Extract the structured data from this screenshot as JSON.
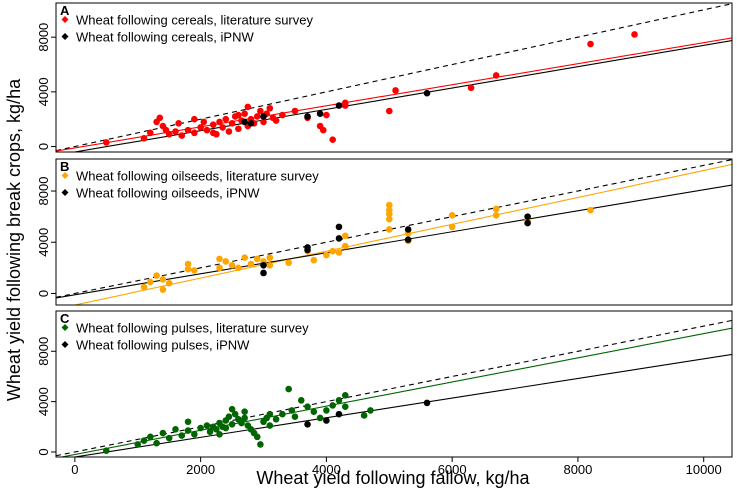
{
  "chart_data": {
    "type": "scatter",
    "xlabel": "Wheat yield following fallow, kg/ha",
    "ylabel": "Wheat yield following break crops, kg/ha",
    "xlim": [
      -300,
      10450
    ],
    "x_ticks": [
      0,
      2000,
      4000,
      6000,
      8000,
      10000
    ],
    "colors": {
      "literature_cereals": "#ff0000",
      "literature_oilseeds": "#ffa500",
      "literature_pulses": "#006400",
      "ipnw": "#000000",
      "reference": "#000000"
    },
    "panels": [
      {
        "letter": "A",
        "ylim": [
          -400,
          10500
        ],
        "y_ticks": [
          0,
          4000,
          8000
        ],
        "legend": [
          "Wheat following cereals, literature survey",
          "Wheat following cereals, iPNW"
        ],
        "fit_literature": {
          "slope": 0.77,
          "intercept": -100
        },
        "fit_ipnw": {
          "slope": 0.78,
          "intercept": -400
        },
        "literature": [
          [
            500,
            300
          ],
          [
            1100,
            600
          ],
          [
            1200,
            1000
          ],
          [
            1300,
            1800
          ],
          [
            1350,
            2100
          ],
          [
            1400,
            1500
          ],
          [
            1450,
            1200
          ],
          [
            1500,
            900
          ],
          [
            1600,
            1100
          ],
          [
            1650,
            1700
          ],
          [
            1700,
            800
          ],
          [
            1800,
            1200
          ],
          [
            1900,
            1000
          ],
          [
            2000,
            1400
          ],
          [
            2050,
            1800
          ],
          [
            2100,
            1200
          ],
          [
            2200,
            1600
          ],
          [
            2250,
            900
          ],
          [
            2300,
            1800
          ],
          [
            2350,
            1400
          ],
          [
            2400,
            2000
          ],
          [
            2450,
            1100
          ],
          [
            2500,
            1700
          ],
          [
            2550,
            2200
          ],
          [
            2600,
            1300
          ],
          [
            2650,
            1900
          ],
          [
            2700,
            2400
          ],
          [
            2750,
            1500
          ],
          [
            2800,
            2000
          ],
          [
            2850,
            1700
          ],
          [
            2900,
            2200
          ],
          [
            2950,
            2600
          ],
          [
            3000,
            1800
          ],
          [
            3050,
            2400
          ],
          [
            3100,
            2800
          ],
          [
            3150,
            2100
          ],
          [
            3200,
            1900
          ],
          [
            3300,
            2300
          ],
          [
            3500,
            2600
          ],
          [
            3700,
            2100
          ],
          [
            3900,
            1500
          ],
          [
            3950,
            1200
          ],
          [
            4000,
            2300
          ],
          [
            4100,
            500
          ],
          [
            4300,
            3200
          ],
          [
            4300,
            3000
          ],
          [
            5000,
            2600
          ],
          [
            5100,
            4100
          ],
          [
            6300,
            4300
          ],
          [
            6700,
            5200
          ],
          [
            8200,
            7500
          ],
          [
            8900,
            8200
          ],
          [
            2200,
            1000
          ],
          [
            1900,
            2000
          ],
          [
            2600,
            2300
          ],
          [
            2750,
            2900
          ]
        ],
        "ipnw": [
          [
            2700,
            1800
          ],
          [
            2800,
            1700
          ],
          [
            3000,
            2200
          ],
          [
            3700,
            2200
          ],
          [
            3900,
            2400
          ],
          [
            4200,
            3000
          ],
          [
            5600,
            3900
          ]
        ]
      },
      {
        "letter": "B",
        "ylim": [
          -900,
          10500
        ],
        "y_ticks": [
          0,
          4000,
          8000
        ],
        "legend": [
          "Wheat following oilseeds, literature survey",
          "Wheat following oilseeds, iPNW"
        ],
        "fit_literature": {
          "slope": 1.05,
          "intercept": -900
        },
        "fit_ipnw": {
          "slope": 0.82,
          "intercept": -100
        },
        "literature": [
          [
            1100,
            500
          ],
          [
            1200,
            900
          ],
          [
            1300,
            1400
          ],
          [
            1400,
            1100
          ],
          [
            1400,
            300
          ],
          [
            1500,
            800
          ],
          [
            1800,
            1900
          ],
          [
            1800,
            2300
          ],
          [
            1900,
            1800
          ],
          [
            2300,
            2000
          ],
          [
            2400,
            2500
          ],
          [
            2500,
            2200
          ],
          [
            2600,
            2000
          ],
          [
            2700,
            2800
          ],
          [
            2800,
            2300
          ],
          [
            2900,
            2700
          ],
          [
            3000,
            2500
          ],
          [
            3100,
            2800
          ],
          [
            3100,
            2200
          ],
          [
            3400,
            2400
          ],
          [
            3700,
            3300
          ],
          [
            3800,
            2600
          ],
          [
            4000,
            3000
          ],
          [
            4100,
            3300
          ],
          [
            4300,
            3700
          ],
          [
            4300,
            4500
          ],
          [
            5000,
            6200
          ],
          [
            5000,
            6500
          ],
          [
            5000,
            6900
          ],
          [
            5000,
            5800
          ],
          [
            5000,
            5000
          ],
          [
            5300,
            4100
          ],
          [
            5300,
            4700
          ],
          [
            6000,
            5200
          ],
          [
            6000,
            6100
          ],
          [
            6700,
            6600
          ],
          [
            6700,
            6100
          ],
          [
            7200,
            5700
          ],
          [
            8200,
            6500
          ],
          [
            4200,
            3200
          ],
          [
            2300,
            2700
          ]
        ],
        "ipnw": [
          [
            3000,
            1600
          ],
          [
            3000,
            2200
          ],
          [
            3700,
            3600
          ],
          [
            3700,
            3400
          ],
          [
            4200,
            5200
          ],
          [
            4200,
            4300
          ],
          [
            5300,
            4200
          ],
          [
            5300,
            5000
          ],
          [
            7200,
            5500
          ],
          [
            7200,
            6000
          ]
        ]
      },
      {
        "letter": "C",
        "ylim": [
          -400,
          11200
        ],
        "y_ticks": [
          0,
          4000,
          8000
        ],
        "legend": [
          "Wheat following pulses, literature survey",
          "Wheat following pulses, iPNW"
        ],
        "fit_literature": {
          "slope": 0.96,
          "intercept": -200
        },
        "fit_ipnw": {
          "slope": 0.78,
          "intercept": -400
        },
        "literature": [
          [
            500,
            100
          ],
          [
            1000,
            600
          ],
          [
            1100,
            900
          ],
          [
            1200,
            1200
          ],
          [
            1300,
            700
          ],
          [
            1400,
            1500
          ],
          [
            1500,
            1100
          ],
          [
            1600,
            1800
          ],
          [
            1700,
            1300
          ],
          [
            1800,
            1700
          ],
          [
            1900,
            1400
          ],
          [
            2000,
            1900
          ],
          [
            2100,
            2100
          ],
          [
            2150,
            1600
          ],
          [
            2200,
            2000
          ],
          [
            2250,
            1800
          ],
          [
            2300,
            2300
          ],
          [
            2350,
            2000
          ],
          [
            2400,
            2500
          ],
          [
            2450,
            2800
          ],
          [
            2500,
            2200
          ],
          [
            2550,
            3000
          ],
          [
            2600,
            2600
          ],
          [
            2650,
            2300
          ],
          [
            2700,
            2700
          ],
          [
            2750,
            2100
          ],
          [
            2800,
            1800
          ],
          [
            2850,
            1500
          ],
          [
            2900,
            1200
          ],
          [
            2950,
            600
          ],
          [
            3000,
            2400
          ],
          [
            3050,
            2700
          ],
          [
            3100,
            2100
          ],
          [
            3200,
            2600
          ],
          [
            3300,
            3000
          ],
          [
            3400,
            5000
          ],
          [
            3450,
            3300
          ],
          [
            3500,
            2800
          ],
          [
            3700,
            3600
          ],
          [
            3800,
            3200
          ],
          [
            3900,
            2700
          ],
          [
            4000,
            3300
          ],
          [
            4100,
            3700
          ],
          [
            4200,
            4100
          ],
          [
            4300,
            4500
          ],
          [
            4300,
            3600
          ],
          [
            4600,
            2900
          ],
          [
            4700,
            3300
          ],
          [
            2500,
            3400
          ],
          [
            2300,
            1400
          ],
          [
            1800,
            2400
          ],
          [
            2700,
            3200
          ],
          [
            3600,
            4100
          ],
          [
            3100,
            3000
          ],
          [
            2400,
            1900
          ]
        ],
        "ipnw": [
          [
            3700,
            2200
          ],
          [
            4000,
            2500
          ],
          [
            4200,
            3000
          ],
          [
            5600,
            3900
          ]
        ]
      }
    ]
  }
}
